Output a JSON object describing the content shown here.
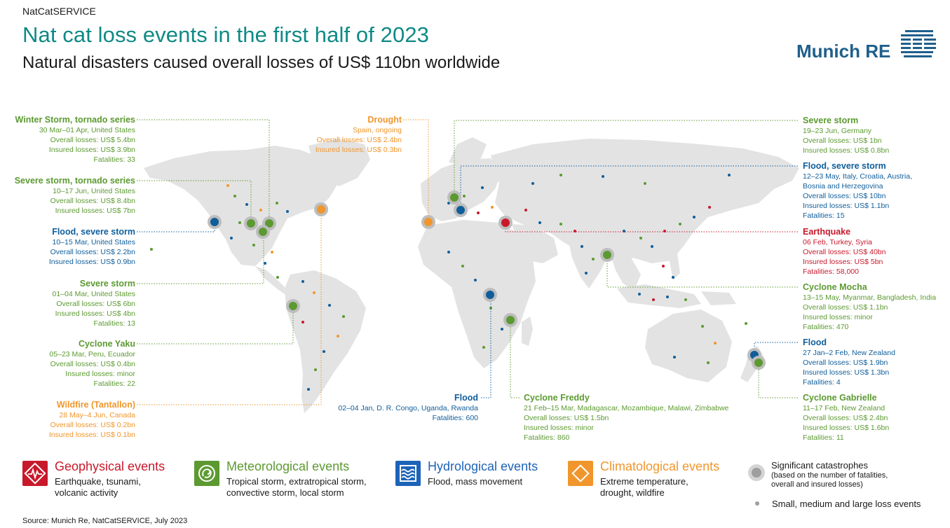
{
  "header": {
    "kicker": "NatCatSERVICE",
    "title": "Nat cat loss events in the first half of 2023",
    "subtitle": "Natural disasters caused overall losses of US$ 110bn worldwide",
    "logo": "Munich RE"
  },
  "colors": {
    "geophysical": "#c8192b",
    "meteorological": "#5c9a31",
    "hydrological": "#0f5e9b",
    "climatological": "#f0962c",
    "land": "#e3e3e3",
    "significant": "#bdbdbd"
  },
  "callouts": {
    "winter_storm": {
      "title": "Winter Storm, tornado series",
      "lines": [
        "30 Mar–01 Apr, United States",
        "Overall losses: US$ 5.4bn",
        "Insured losses: US$ 3.9bn",
        "Fatalities: 33"
      ]
    },
    "severe_storm_tornado": {
      "title": "Severe storm, tornado series",
      "lines": [
        "10–17 Jun, United States",
        "Overall losses: US$ 8.4bn",
        "Insured losses: US$ 7bn"
      ]
    },
    "flood_us": {
      "title": "Flood, severe storm",
      "lines": [
        "10–15 Mar, United States",
        "Overall losses: US$ 2.2bn",
        "Insured losses: US$ 0.9bn"
      ]
    },
    "severe_storm_us": {
      "title": "Severe storm",
      "lines": [
        "01–04 Mar, United States",
        "Overall losses: US$ 6bn",
        "Insured losses: US$ 4bn",
        "Fatalities: 13"
      ]
    },
    "cyclone_yaku": {
      "title": "Cyclone Yaku",
      "lines": [
        "05–23 Mar, Peru, Ecuador",
        "Overall losses: US$ 0.4bn",
        "Insured losses: minor",
        "Fatalities: 22"
      ]
    },
    "wildfire": {
      "title": "Wildfire (Tantallon)",
      "lines": [
        "28 May–4 Jun, Canada",
        "Overall losses: US$ 0.2bn",
        "Insured losses: US$ 0.1bn"
      ]
    },
    "drought": {
      "title": "Drought",
      "lines": [
        "Spain, ongoing",
        "Overall losses: US$ 2.4bn",
        "Insured losses: US$ 0.3bn"
      ]
    },
    "flood_africa": {
      "title": "Flood",
      "lines": [
        "02–04 Jan, D. R. Congo, Uganda, Rwanda",
        "Fatalities: 600"
      ]
    },
    "cyclone_freddy": {
      "title": "Cyclone Freddy",
      "lines": [
        "21 Feb–15 Mar, Madagascar, Mozambique, Malawi, Zimbabwe",
        "Overall losses: US$ 1.5bn",
        "Insured losses: minor",
        "Fatalities: 860"
      ]
    },
    "severe_storm_de": {
      "title": "Severe storm",
      "lines": [
        "19–23 Jun, Germany",
        "Overall losses: US$ 1bn",
        "Insured losses: US$ 0.8bn"
      ]
    },
    "flood_italy": {
      "title": "Flood, severe storm",
      "lines": [
        "12–23 May, Italy, Croatia, Austria,",
        "Bosnia and Herzegovina",
        "Overall losses: US$ 10bn",
        "Insured losses: US$ 1.1bn",
        "Fatalities: 15"
      ]
    },
    "earthquake": {
      "title": "Earthquake",
      "lines": [
        "06 Feb, Turkey, Syria",
        "Overall losses: US$ 40bn",
        "Insured losses: US$ 5bn",
        "Fatalities: 58,000"
      ]
    },
    "cyclone_mocha": {
      "title": "Cyclone Mocha",
      "lines": [
        "13–15 May, Myanmar, Bangladesh, India",
        "Overall losses: US$ 1.1bn",
        "Insured losses: minor",
        "Fatalities: 470"
      ]
    },
    "flood_nz": {
      "title": "Flood",
      "lines": [
        "27 Jan–2 Feb, New Zealand",
        "Overall losses: US$ 1.9bn",
        "Insured losses: US$ 1.3bn",
        "Fatalities: 4"
      ]
    },
    "cyclone_gabrielle": {
      "title": "Cyclone Gabrielle",
      "lines": [
        "11–17 Feb, New Zealand",
        "Overall losses: US$ 2.4bn",
        "Insured losses: US$ 1.6bn",
        "Fatalities: 11"
      ]
    }
  },
  "legend": {
    "geo_title": "Geophysical events",
    "geo_desc": [
      "Earthquake, tsunami,",
      "volcanic activity"
    ],
    "met_title": "Meteorological events",
    "met_desc": [
      "Tropical storm, extratropical storm,",
      "convective storm, local storm"
    ],
    "hyd_title": "Hydrological events",
    "hyd_desc": [
      "Flood, mass movement"
    ],
    "cli_title": "Climatological events",
    "cli_desc": [
      "Extreme temperature,",
      "drought, wildfire"
    ],
    "sig_title": "Significant catastrophes",
    "sig_desc": [
      "(based on the number of fatalities,",
      "overall and insured losses)"
    ],
    "small_label": "Small, medium and large loss events"
  },
  "source": "Source: Munich Re, NatCatSERVICE, July 2023"
}
